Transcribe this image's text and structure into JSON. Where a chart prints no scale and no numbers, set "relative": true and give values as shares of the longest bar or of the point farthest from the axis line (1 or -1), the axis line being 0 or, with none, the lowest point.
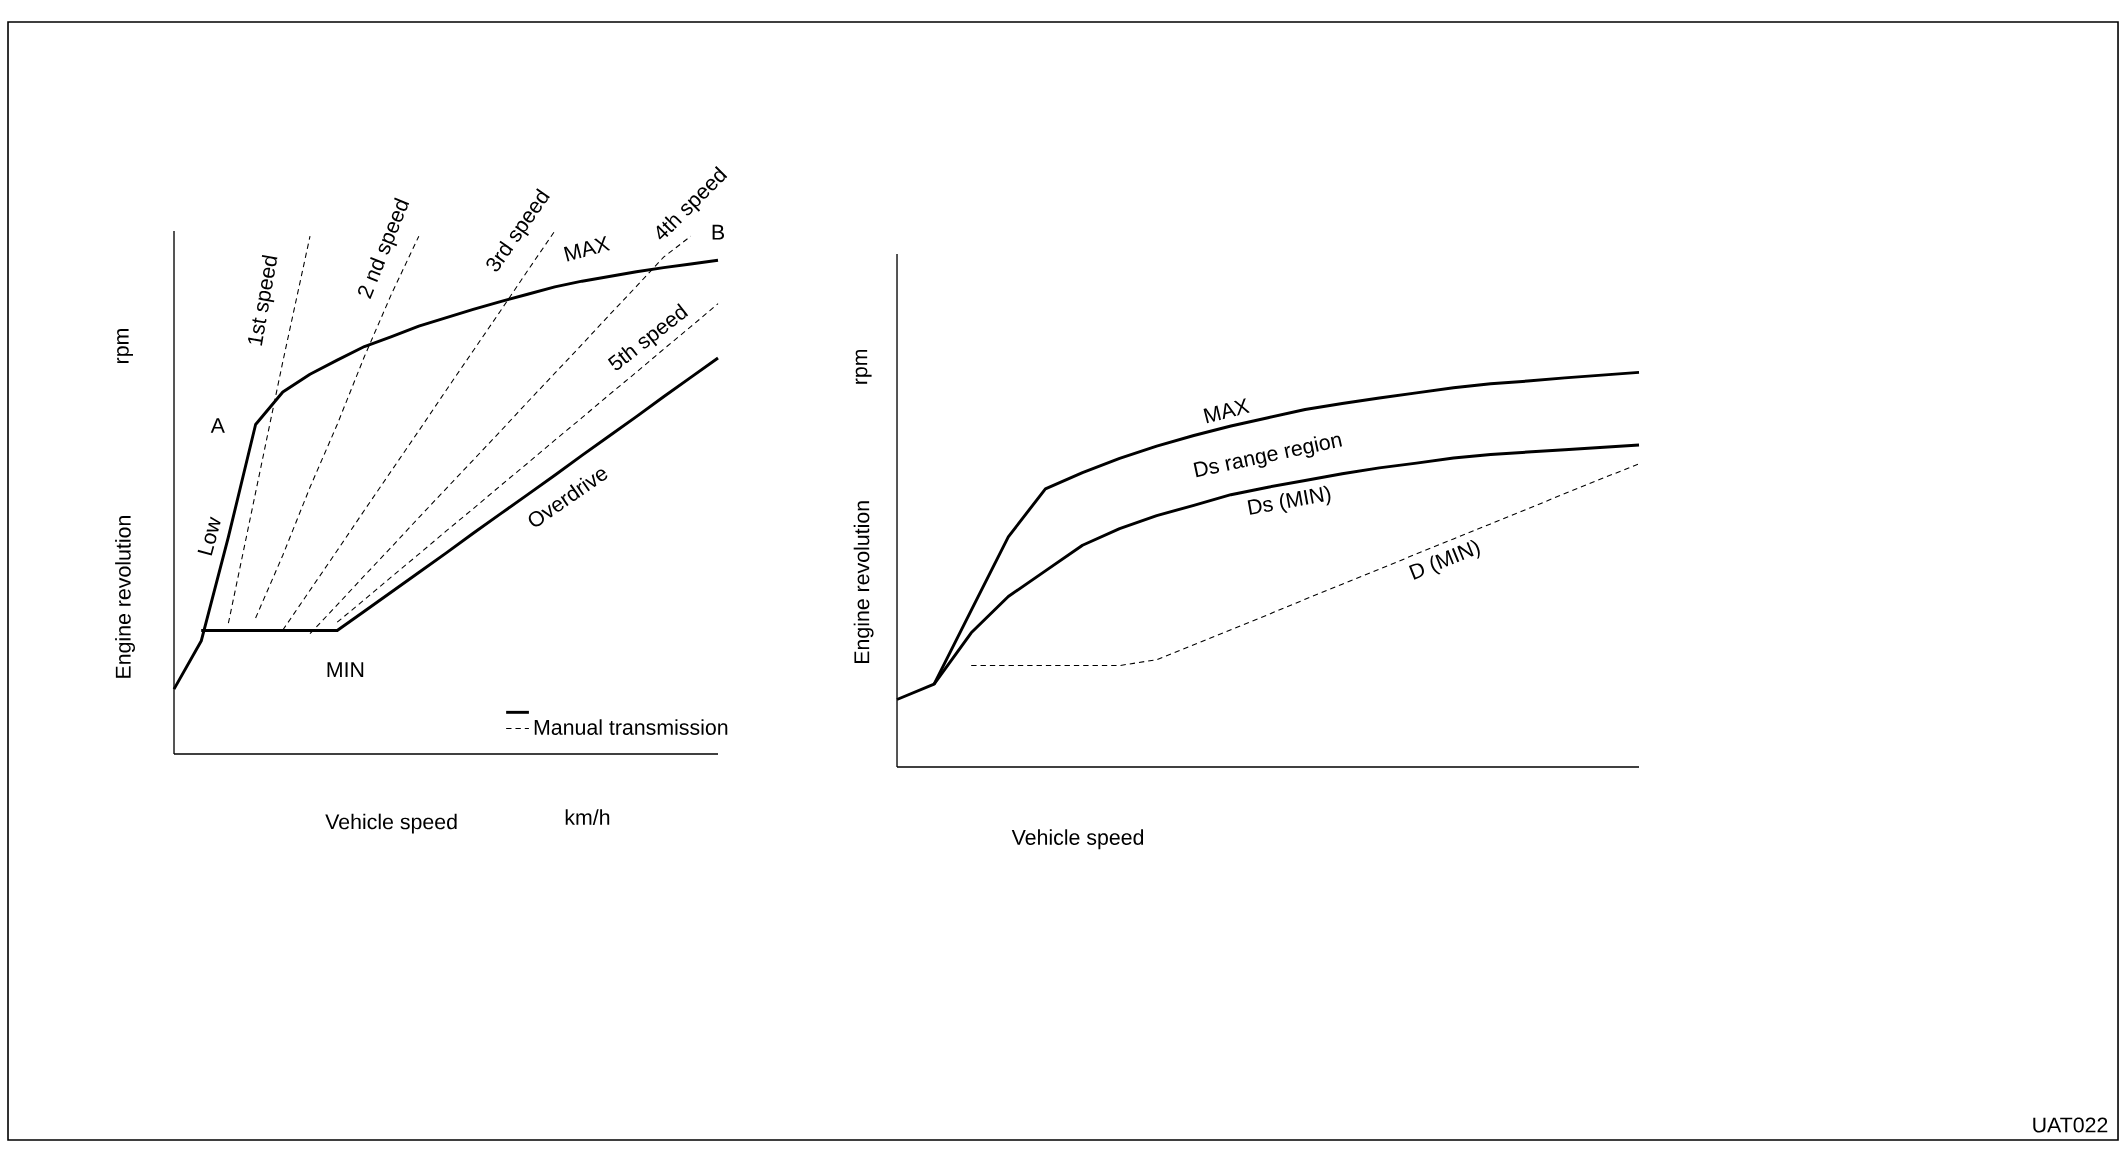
{
  "chart_data": [
    {
      "type": "line",
      "relative": true,
      "xlabel": "Vehicle speed",
      "ylabel": "Engine revolution",
      "legend": "bottom right",
      "categories": [
        null,
        null,
        null,
        null,
        null,
        null,
        null,
        null,
        null,
        null,
        null,
        null,
        null,
        null,
        null,
        null,
        null,
        null,
        null,
        null,
        null
      ],
      "series": [
        {
          "color": "#000000",
          "line_style": "solid",
          "values": [
            0.124,
            0.216,
            0.415,
            0.63,
            0.692,
            0.726,
            0.753,
            0.779,
            0.798,
            0.818,
            0.834,
            0.85,
            0.865,
            0.879,
            0.893,
            0.904,
            0.913,
            0.922,
            0.93,
            0.937,
            0.944
          ]
        },
        {
          "color": "#000000",
          "line_style": "solid",
          "values": [
            null,
            0.236,
            0.236,
            0.236,
            0.236,
            0.236,
            0.236,
            0.273,
            0.31,
            0.347,
            0.384,
            0.422,
            0.459,
            0.496,
            0.533,
            0.571,
            0.608,
            0.645,
            0.683,
            0.72,
            0.757
          ]
        },
        {
          "name": "Manual transmission",
          "color": "#000000",
          "line_style": "dashed",
          "values": [
            null,
            null,
            0.25,
            0.5,
            0.75,
            0.99,
            null,
            null,
            null,
            null,
            null,
            null,
            null,
            null,
            null,
            null,
            null,
            null,
            null,
            null,
            null
          ]
        },
        {
          "color": "#000000",
          "line_style": "dashed",
          "values": [
            null,
            null,
            null,
            0.26,
            0.38,
            0.51,
            0.63,
            0.76,
            0.88,
            0.99,
            null,
            null,
            null,
            null,
            null,
            null,
            null,
            null,
            null,
            null,
            null
          ]
        },
        {
          "color": "#000000",
          "line_style": "dashed",
          "values": [
            null,
            null,
            null,
            null,
            0.237,
            0.313,
            0.389,
            0.466,
            0.542,
            0.618,
            0.695,
            0.771,
            0.847,
            0.924,
            1.0,
            null,
            null,
            null,
            null,
            null,
            null
          ]
        },
        {
          "color": "#000000",
          "line_style": "dashed",
          "values": [
            null,
            null,
            null,
            null,
            null,
            0.23,
            0.285,
            0.341,
            0.396,
            0.452,
            0.507,
            0.562,
            0.617,
            0.673,
            0.728,
            0.783,
            0.839,
            0.894,
            0.95,
            0.99,
            null
          ]
        },
        {
          "color": "#000000",
          "line_style": "dashed",
          "values": [
            null,
            null,
            null,
            null,
            null,
            null,
            0.252,
            0.295,
            0.339,
            0.382,
            0.426,
            0.469,
            0.513,
            0.556,
            0.6,
            0.643,
            0.687,
            0.73,
            0.774,
            0.817,
            0.861
          ]
        }
      ],
      "annotations": [
        "Low",
        "A",
        "B",
        "MAX",
        "MIN",
        "Overdrive",
        "1st speed",
        "2 nd speed",
        "3rd speed",
        "4th speed",
        "5th speed",
        "rpm",
        "km/h"
      ]
    },
    {
      "type": "line",
      "relative": true,
      "xlabel": "Vehicle speed",
      "ylabel": "Engine revolution",
      "categories": [
        null,
        null,
        null,
        null,
        null,
        null,
        null,
        null,
        null,
        null,
        null,
        null,
        null,
        null,
        null,
        null,
        null,
        null,
        null,
        null,
        null
      ],
      "series": [
        {
          "name": "MAX",
          "color": "#000000",
          "line_style": "solid",
          "values": [
            0.171,
            0.21,
            0.397,
            0.583,
            0.705,
            0.746,
            0.782,
            0.813,
            0.84,
            0.864,
            0.885,
            0.906,
            0.921,
            0.935,
            0.948,
            0.961,
            0.971,
            0.978,
            0.986,
            0.993,
            1.0
          ]
        },
        {
          "name": "Ds (MIN)",
          "color": "#000000",
          "line_style": "solid",
          "values": [
            null,
            0.21,
            0.34,
            0.432,
            0.497,
            0.562,
            0.604,
            0.637,
            0.663,
            0.69,
            0.709,
            0.726,
            0.743,
            0.758,
            0.77,
            0.783,
            0.792,
            0.798,
            0.804,
            0.81,
            0.816
          ]
        },
        {
          "name": "D (MIN)",
          "color": "#000000",
          "line_style": "dashed",
          "values": [
            null,
            null,
            0.257,
            0.257,
            0.257,
            0.257,
            0.257,
            0.272,
            0.31,
            0.348,
            0.386,
            0.425,
            0.463,
            0.501,
            0.54,
            0.578,
            0.616,
            0.654,
            0.693,
            0.731,
            0.768
          ]
        }
      ],
      "annotations": [
        "Ds range region",
        "rpm",
        "UAT022"
      ]
    }
  ]
}
